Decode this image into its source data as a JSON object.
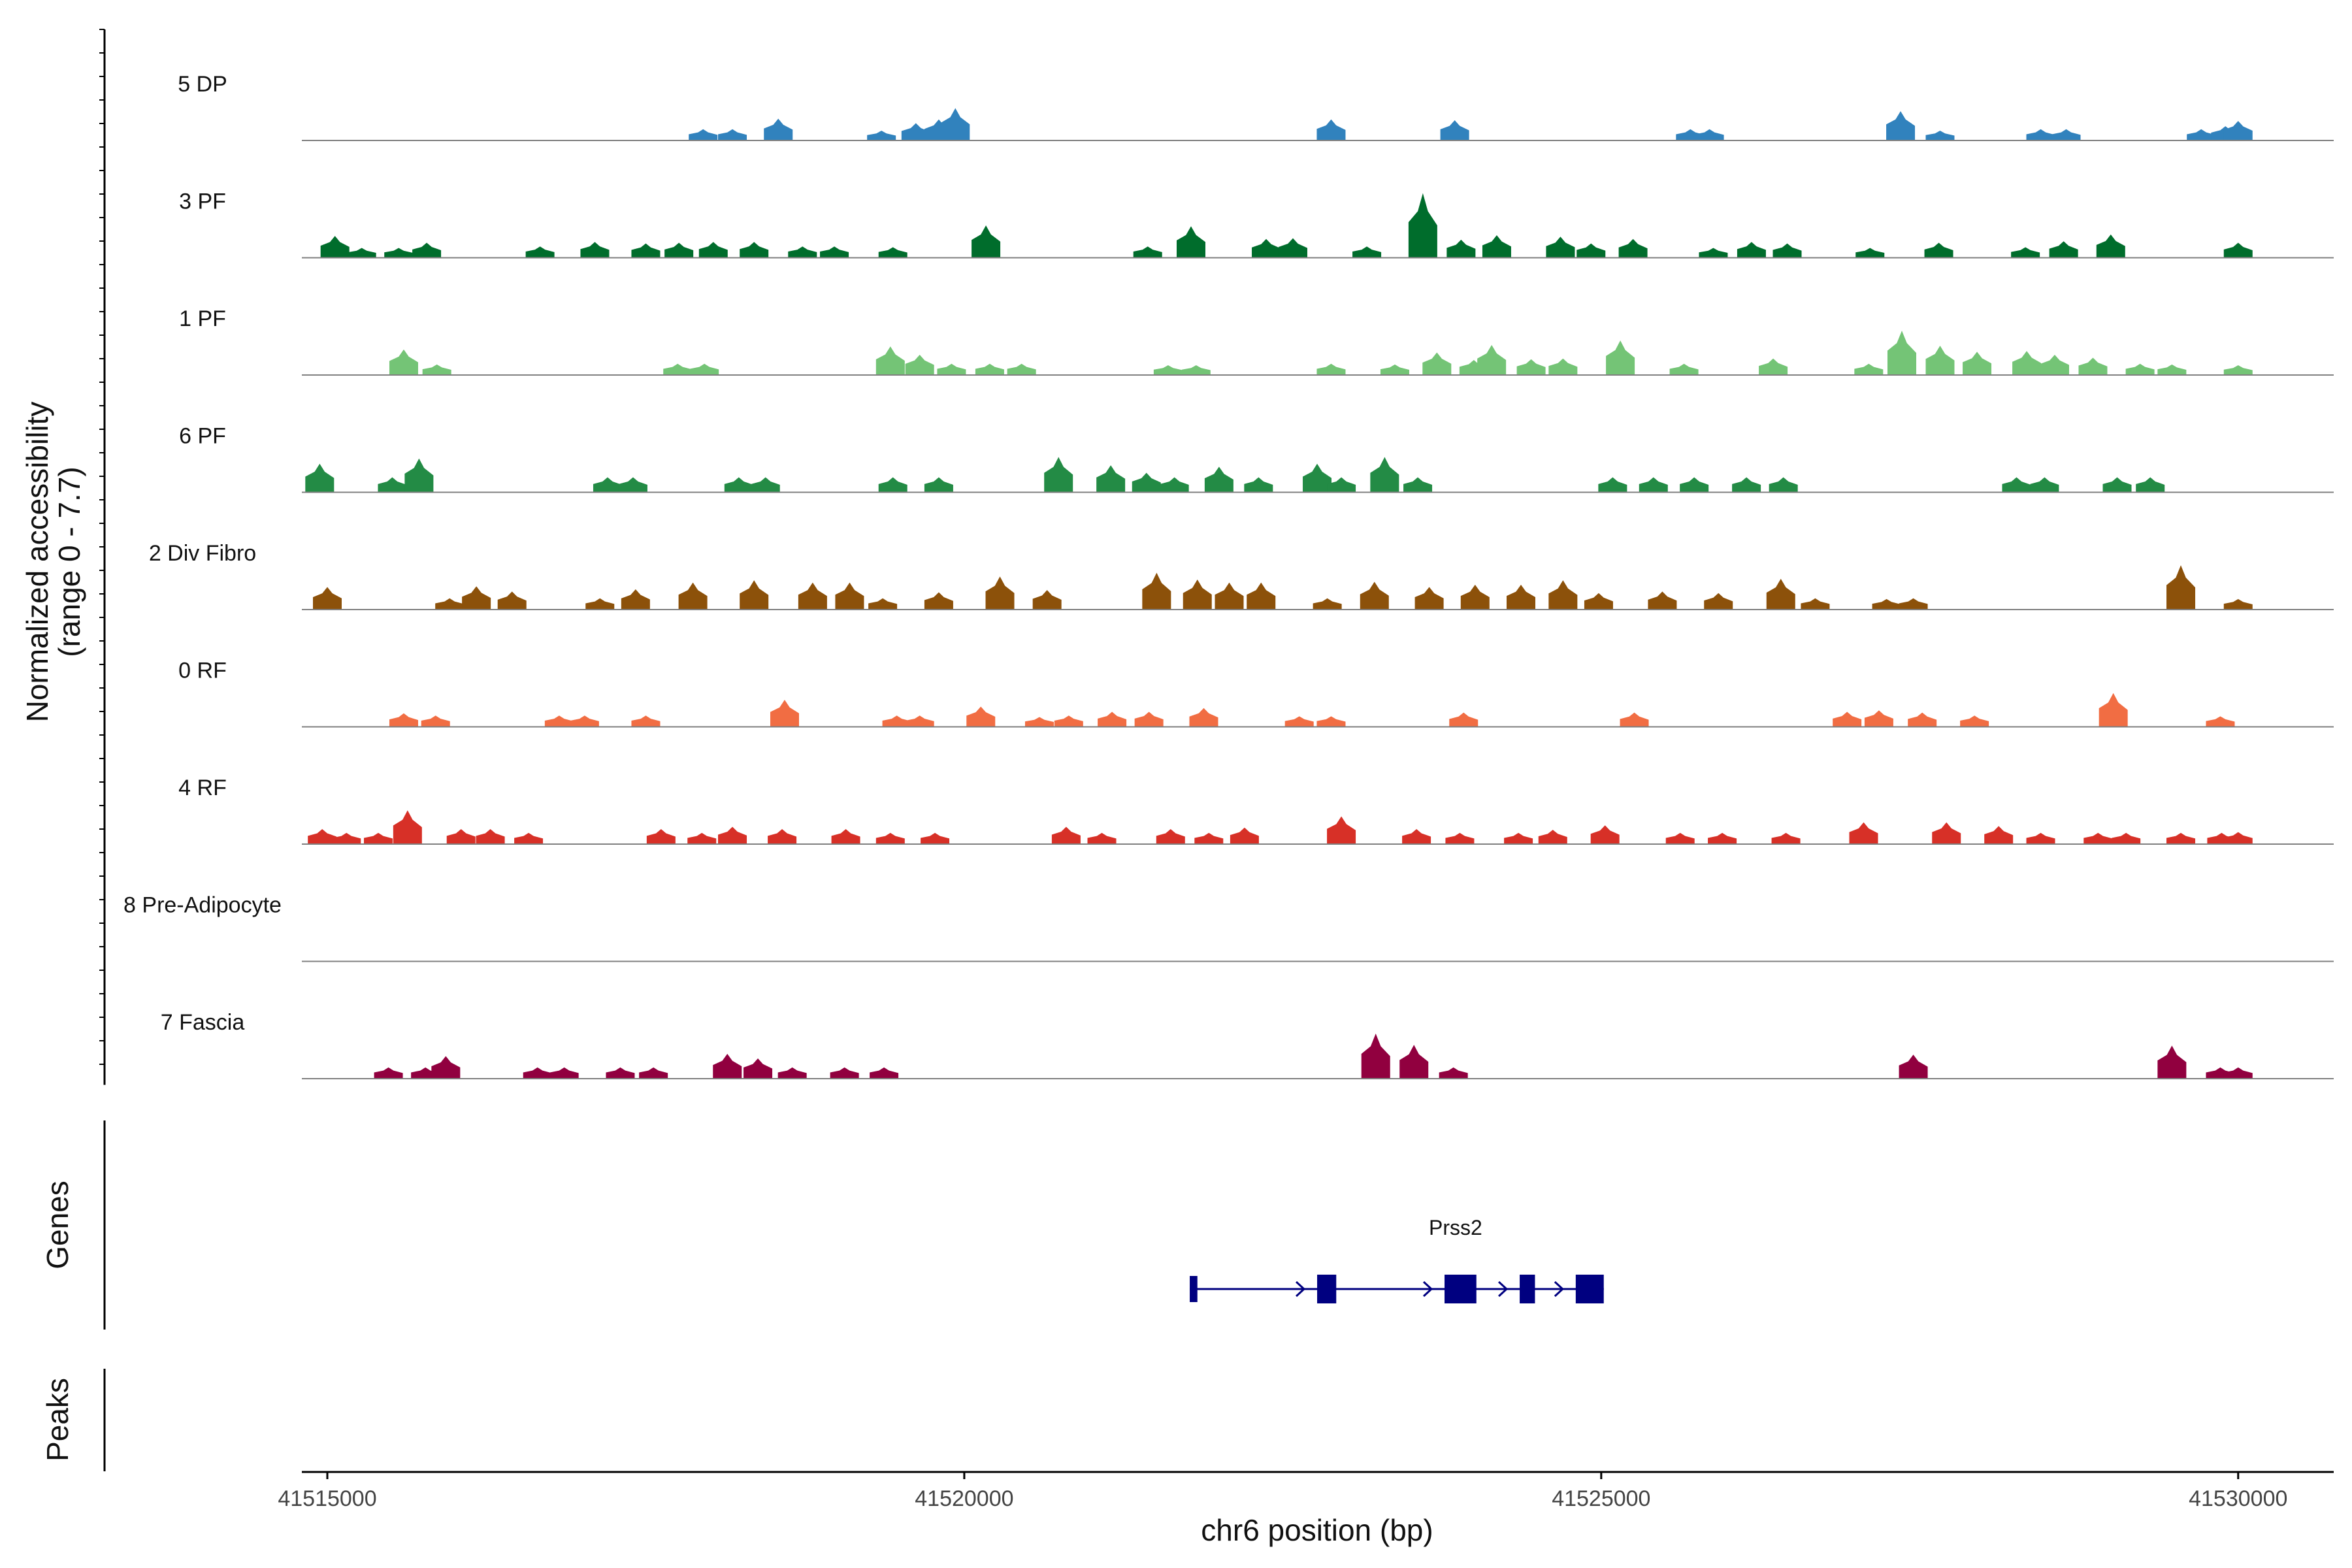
{
  "chart_data": {
    "type": "area",
    "title": "",
    "ylabel_line1": "Normalized accessibility",
    "ylabel_line2": "(range 0 - 7.7)",
    "xlabel": "chr6 position (bp)",
    "xlim": [
      41514800,
      41530750
    ],
    "ylim": [
      0,
      7.7
    ],
    "x_ticks": [
      41515000,
      41520000,
      41525000,
      41530000
    ],
    "x_tick_labels": [
      "41515000",
      "41520000",
      "41525000",
      "41530000"
    ],
    "tracks": [
      {
        "name": "5 DP",
        "color": "#3182bd",
        "peaks": [
          [
            41517950,
            1.5
          ],
          [
            41518180,
            1.5
          ],
          [
            41518540,
            2.9
          ],
          [
            41519350,
            1.3
          ],
          [
            41519620,
            2.3
          ],
          [
            41519800,
            2.8
          ],
          [
            41519930,
            4.3
          ],
          [
            41522880,
            2.8
          ],
          [
            41523850,
            2.7
          ],
          [
            41525700,
            1.5
          ],
          [
            41525850,
            1.5
          ],
          [
            41527350,
            3.9
          ],
          [
            41527660,
            1.3
          ],
          [
            41528450,
            1.5
          ],
          [
            41528650,
            1.5
          ],
          [
            41529710,
            1.5
          ],
          [
            41529900,
            1.9
          ],
          [
            41530000,
            2.6
          ]
        ]
      },
      {
        "name": "3 PF",
        "color": "#006d2c",
        "peaks": [
          [
            41515060,
            2.9
          ],
          [
            41515270,
            1.3
          ],
          [
            41515560,
            1.3
          ],
          [
            41515780,
            2.0
          ],
          [
            41516670,
            1.5
          ],
          [
            41517100,
            2.1
          ],
          [
            41517500,
            1.9
          ],
          [
            41517760,
            2.0
          ],
          [
            41518030,
            2.1
          ],
          [
            41518350,
            2.1
          ],
          [
            41518730,
            1.5
          ],
          [
            41518980,
            1.5
          ],
          [
            41519440,
            1.4
          ],
          [
            41520170,
            4.3
          ],
          [
            41521440,
            1.5
          ],
          [
            41521780,
            4.2
          ],
          [
            41522370,
            2.5
          ],
          [
            41522580,
            2.6
          ],
          [
            41523160,
            1.5
          ],
          [
            41523600,
            8.6
          ],
          [
            41523900,
            2.4
          ],
          [
            41524180,
            3.0
          ],
          [
            41524680,
            2.8
          ],
          [
            41524920,
            1.9
          ],
          [
            41525250,
            2.5
          ],
          [
            41525880,
            1.3
          ],
          [
            41526180,
            2.1
          ],
          [
            41526460,
            1.9
          ],
          [
            41527110,
            1.3
          ],
          [
            41527650,
            2.0
          ],
          [
            41528330,
            1.4
          ],
          [
            41528630,
            2.2
          ],
          [
            41529000,
            3.1
          ],
          [
            41530000,
            2.0
          ]
        ]
      },
      {
        "name": "1 PF",
        "color": "#74c476",
        "peaks": [
          [
            41515600,
            3.4
          ],
          [
            41515860,
            1.4
          ],
          [
            41517750,
            1.5
          ],
          [
            41517960,
            1.5
          ],
          [
            41519420,
            3.8
          ],
          [
            41519650,
            2.7
          ],
          [
            41519900,
            1.5
          ],
          [
            41520200,
            1.5
          ],
          [
            41520450,
            1.5
          ],
          [
            41521600,
            1.3
          ],
          [
            41521820,
            1.3
          ],
          [
            41522880,
            1.5
          ],
          [
            41523380,
            1.4
          ],
          [
            41523710,
            3.0
          ],
          [
            41524000,
            2.0
          ],
          [
            41524140,
            4.0
          ],
          [
            41524450,
            2.1
          ],
          [
            41524700,
            2.2
          ],
          [
            41525150,
            4.6
          ],
          [
            41525650,
            1.5
          ],
          [
            41526350,
            2.2
          ],
          [
            41527100,
            1.5
          ],
          [
            41527360,
            5.9
          ],
          [
            41527660,
            3.9
          ],
          [
            41527950,
            3.1
          ],
          [
            41528340,
            3.2
          ],
          [
            41528560,
            2.7
          ],
          [
            41528860,
            2.3
          ],
          [
            41529230,
            1.5
          ],
          [
            41529480,
            1.4
          ],
          [
            41530000,
            1.3
          ]
        ]
      },
      {
        "name": "6 PF",
        "color": "#238b45",
        "peaks": [
          [
            41514940,
            3.8
          ],
          [
            41515510,
            2.0
          ],
          [
            41515720,
            4.5
          ],
          [
            41517200,
            2.0
          ],
          [
            41517400,
            2.0
          ],
          [
            41518230,
            2.0
          ],
          [
            41518440,
            2.0
          ],
          [
            41519440,
            2.0
          ],
          [
            41519800,
            2.0
          ],
          [
            41520740,
            4.7
          ],
          [
            41521150,
            3.6
          ],
          [
            41521430,
            2.6
          ],
          [
            41521650,
            2.0
          ],
          [
            41522000,
            3.4
          ],
          [
            41522310,
            2.0
          ],
          [
            41522770,
            3.8
          ],
          [
            41522960,
            2.0
          ],
          [
            41523300,
            4.7
          ],
          [
            41523560,
            2.0
          ],
          [
            41525090,
            2.0
          ],
          [
            41525410,
            2.0
          ],
          [
            41525730,
            2.0
          ],
          [
            41526140,
            2.0
          ],
          [
            41526430,
            2.0
          ],
          [
            41528260,
            2.0
          ],
          [
            41528480,
            2.0
          ],
          [
            41529050,
            2.0
          ],
          [
            41529310,
            2.0
          ]
        ]
      },
      {
        "name": "2 Div Fibro",
        "color": "#8c510a",
        "peaks": [
          [
            41515000,
            3.0
          ],
          [
            41515960,
            1.5
          ],
          [
            41516170,
            3.1
          ],
          [
            41516450,
            2.4
          ],
          [
            41517140,
            1.5
          ],
          [
            41517420,
            2.7
          ],
          [
            41517870,
            3.6
          ],
          [
            41518350,
            3.9
          ],
          [
            41518810,
            3.6
          ],
          [
            41519100,
            3.6
          ],
          [
            41519360,
            1.5
          ],
          [
            41519800,
            2.3
          ],
          [
            41520280,
            4.4
          ],
          [
            41520650,
            2.6
          ],
          [
            41521510,
            4.9
          ],
          [
            41521830,
            4.0
          ],
          [
            41522080,
            3.6
          ],
          [
            41522330,
            3.6
          ],
          [
            41522850,
            1.5
          ],
          [
            41523220,
            3.7
          ],
          [
            41523650,
            3.0
          ],
          [
            41524010,
            3.3
          ],
          [
            41524370,
            3.3
          ],
          [
            41524700,
            3.9
          ],
          [
            41524980,
            2.2
          ],
          [
            41525480,
            2.4
          ],
          [
            41525920,
            2.2
          ],
          [
            41526410,
            4.1
          ],
          [
            41526680,
            1.5
          ],
          [
            41527240,
            1.4
          ],
          [
            41527450,
            1.5
          ],
          [
            41529550,
            5.9
          ],
          [
            41530000,
            1.4
          ]
        ]
      },
      {
        "name": "0 RF",
        "color": "#f16d43",
        "peaks": [
          [
            41515600,
            1.8
          ],
          [
            41515850,
            1.5
          ],
          [
            41516820,
            1.5
          ],
          [
            41517020,
            1.5
          ],
          [
            41517500,
            1.5
          ],
          [
            41518590,
            3.6
          ],
          [
            41519470,
            1.5
          ],
          [
            41519650,
            1.5
          ],
          [
            41520130,
            2.7
          ],
          [
            41520590,
            1.3
          ],
          [
            41520820,
            1.5
          ],
          [
            41521160,
            2.0
          ],
          [
            41521450,
            2.0
          ],
          [
            41521880,
            2.5
          ],
          [
            41522630,
            1.4
          ],
          [
            41522880,
            1.4
          ],
          [
            41523920,
            1.9
          ],
          [
            41525260,
            1.9
          ],
          [
            41526930,
            2.0
          ],
          [
            41527180,
            2.2
          ],
          [
            41527520,
            1.9
          ],
          [
            41527930,
            1.5
          ],
          [
            41529020,
            4.5
          ],
          [
            41529860,
            1.4
          ]
        ]
      },
      {
        "name": "4 RF",
        "color": "#d73027",
        "peaks": [
          [
            41514960,
            2.0
          ],
          [
            41515150,
            1.5
          ],
          [
            41515400,
            1.5
          ],
          [
            41515630,
            4.5
          ],
          [
            41516050,
            2.0
          ],
          [
            41516280,
            2.0
          ],
          [
            41516580,
            1.5
          ],
          [
            41517620,
            2.0
          ],
          [
            41517940,
            1.5
          ],
          [
            41518180,
            2.3
          ],
          [
            41518570,
            2.0
          ],
          [
            41519070,
            2.0
          ],
          [
            41519420,
            1.5
          ],
          [
            41519770,
            1.5
          ],
          [
            41520800,
            2.3
          ],
          [
            41521080,
            1.5
          ],
          [
            41521620,
            2.0
          ],
          [
            41521920,
            1.5
          ],
          [
            41522200,
            2.2
          ],
          [
            41522960,
            3.7
          ],
          [
            41523550,
            2.0
          ],
          [
            41523890,
            1.5
          ],
          [
            41524350,
            1.5
          ],
          [
            41524620,
            1.9
          ],
          [
            41525030,
            2.5
          ],
          [
            41525620,
            1.5
          ],
          [
            41525950,
            1.5
          ],
          [
            41526450,
            1.5
          ],
          [
            41527060,
            2.9
          ],
          [
            41527710,
            2.9
          ],
          [
            41528120,
            2.4
          ],
          [
            41528450,
            1.5
          ],
          [
            41528900,
            1.5
          ],
          [
            41529120,
            1.5
          ],
          [
            41529550,
            1.5
          ],
          [
            41529870,
            1.5
          ],
          [
            41530000,
            1.6
          ]
        ]
      },
      {
        "name": "8 Pre-Adipocyte",
        "color": "#f768a1",
        "peaks": []
      },
      {
        "name": "7 Fascia",
        "color": "#91003f",
        "peaks": [
          [
            41515480,
            1.5
          ],
          [
            41515770,
            1.5
          ],
          [
            41515930,
            3.0
          ],
          [
            41516650,
            1.5
          ],
          [
            41516860,
            1.5
          ],
          [
            41517300,
            1.5
          ],
          [
            41517560,
            1.5
          ],
          [
            41518140,
            3.3
          ],
          [
            41518380,
            2.7
          ],
          [
            41518650,
            1.5
          ],
          [
            41519060,
            1.5
          ],
          [
            41519370,
            1.5
          ],
          [
            41523230,
            6.0
          ],
          [
            41523530,
            4.5
          ],
          [
            41523840,
            1.5
          ],
          [
            41527450,
            3.2
          ],
          [
            41529480,
            4.4
          ],
          [
            41529860,
            1.5
          ],
          [
            41530000,
            1.5
          ]
        ]
      }
    ],
    "genes_label": "Genes",
    "peaks_label": "Peaks",
    "gene": {
      "name": "Prss2",
      "start": 41521770,
      "end": 41525020,
      "strand": "+",
      "exons": [
        [
          41521770,
          41521830
        ],
        [
          41522770,
          41522920
        ],
        [
          41523770,
          41524020
        ],
        [
          41524360,
          41524480
        ],
        [
          41524800,
          41525020
        ]
      ]
    },
    "colors": {
      "baseline": "#808080",
      "axis": "#000000",
      "gene": "#000080"
    }
  }
}
